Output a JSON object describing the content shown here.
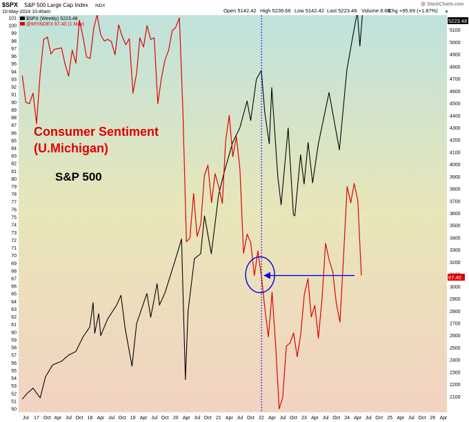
{
  "header": {
    "symbol": "$SPX",
    "name": "S&P 500 Large Cap Index",
    "exchange": "INDX",
    "date": "10-May-2024 10:46am",
    "open": "Open 5142.42",
    "high": "High 5239.66",
    "low": "Low 5142.42",
    "last": "Last 5223.48",
    "volume": "Volume 8.6B",
    "chg": "Chg +95.69 (+1.87%)",
    "chg_arrow": "▲",
    "watermark": "@ StockCharts.com",
    "legend_spx": "$SPX (Weekly) 5223.48",
    "legend_sent": "@MYINDEX 67.40 (1 May)"
  },
  "annotations": {
    "sentiment_title_line1": "Consumer Sentiment",
    "sentiment_title_line2": "(U.Michigan)",
    "spx_label": "S&P 500",
    "spx_last_badge": "5223.48",
    "sent_last_badge": "67.40"
  },
  "colors": {
    "spx": "#000000",
    "sentiment": "#dd0000",
    "annotation_blue": "#0000dd",
    "bg_top": "#bfe3dc",
    "bg_mid": "#e9e6b8",
    "bg_bottom": "#f3d3c2"
  },
  "chart_data": {
    "type": "line",
    "x_ticks": [
      "Jul",
      "17",
      "Oct",
      "Apr",
      "Jul",
      "Oct",
      "18",
      "Apr",
      "Jul",
      "Oct",
      "19",
      "Apr",
      "Jul",
      "Oct",
      "20",
      "Apr",
      "Jul",
      "Oct",
      "21",
      "Apr",
      "Jul",
      "Oct",
      "22",
      "Apr",
      "Jul",
      "Oct",
      "23",
      "Apr",
      "Jul",
      "Oct",
      "24",
      "Apr",
      "Jul",
      "Oct",
      "25",
      "Apr",
      "Jul",
      "Oct",
      "26",
      "Apr"
    ],
    "left_axis": {
      "min": 50,
      "max": 101,
      "ticks": [
        50,
        51,
        52,
        53,
        54,
        55,
        56,
        57,
        58,
        59,
        60,
        61,
        62,
        63,
        64,
        65,
        66,
        67,
        68,
        69,
        70,
        71,
        72,
        73,
        74,
        75,
        76,
        77,
        78,
        79,
        80,
        81,
        82,
        83,
        84,
        85,
        86,
        87,
        88,
        89,
        90,
        91,
        92,
        93,
        94,
        95,
        96,
        97,
        98,
        99,
        100,
        101
      ]
    },
    "right_axis": {
      "min": 2000,
      "max": 5200,
      "ticks": [
        2100,
        2200,
        2300,
        2400,
        2500,
        2600,
        2700,
        2800,
        2900,
        3000,
        3100,
        3200,
        3300,
        3400,
        3500,
        3600,
        3700,
        3800,
        3900,
        4000,
        4100,
        4200,
        4300,
        4400,
        4500,
        4600,
        4700,
        4800,
        4900,
        5000,
        5100
      ]
    },
    "series": [
      {
        "name": "$SPX (Weekly)",
        "axis": "right",
        "points": [
          [
            "2016-06-01",
            2080
          ],
          [
            "2016-07-15",
            2130
          ],
          [
            "2016-09-01",
            2170
          ],
          [
            "2016-11-01",
            2090
          ],
          [
            "2016-12-15",
            2260
          ],
          [
            "2017-02-15",
            2360
          ],
          [
            "2017-05-01",
            2390
          ],
          [
            "2017-07-01",
            2440
          ],
          [
            "2017-09-01",
            2470
          ],
          [
            "2017-11-01",
            2590
          ],
          [
            "2017-12-29",
            2670
          ],
          [
            "2018-01-26",
            2870
          ],
          [
            "2018-02-09",
            2620
          ],
          [
            "2018-03-15",
            2780
          ],
          [
            "2018-04-01",
            2600
          ],
          [
            "2018-06-01",
            2740
          ],
          [
            "2018-08-15",
            2850
          ],
          [
            "2018-09-21",
            2930
          ],
          [
            "2018-10-26",
            2660
          ],
          [
            "2018-12-24",
            2350
          ],
          [
            "2019-02-01",
            2700
          ],
          [
            "2019-04-30",
            2945
          ],
          [
            "2019-06-01",
            2750
          ],
          [
            "2019-07-26",
            3025
          ],
          [
            "2019-08-15",
            2850
          ],
          [
            "2019-10-01",
            2950
          ],
          [
            "2019-12-31",
            3230
          ],
          [
            "2020-02-19",
            3390
          ],
          [
            "2020-03-23",
            2240
          ],
          [
            "2020-04-15",
            2800
          ],
          [
            "2020-06-08",
            3230
          ],
          [
            "2020-07-31",
            3270
          ],
          [
            "2020-09-02",
            3580
          ],
          [
            "2020-10-30",
            3270
          ],
          [
            "2020-12-31",
            3750
          ],
          [
            "2021-02-15",
            3930
          ],
          [
            "2021-04-30",
            4180
          ],
          [
            "2021-06-30",
            4300
          ],
          [
            "2021-08-31",
            4520
          ],
          [
            "2021-10-01",
            4360
          ],
          [
            "2021-11-19",
            4700
          ],
          [
            "2021-12-31",
            4770
          ],
          [
            "2022-01-28",
            4430
          ],
          [
            "2022-03-08",
            4170
          ],
          [
            "2022-03-29",
            4630
          ],
          [
            "2022-05-20",
            3900
          ],
          [
            "2022-06-17",
            3670
          ],
          [
            "2022-08-16",
            4300
          ],
          [
            "2022-09-30",
            3590
          ],
          [
            "2022-10-12",
            3580
          ],
          [
            "2022-11-30",
            4080
          ],
          [
            "2022-12-30",
            3840
          ],
          [
            "2023-02-02",
            4180
          ],
          [
            "2023-03-13",
            3850
          ],
          [
            "2023-05-01",
            4170
          ],
          [
            "2023-07-31",
            4590
          ],
          [
            "2023-10-27",
            4120
          ],
          [
            "2023-12-29",
            4770
          ],
          [
            "2024-02-15",
            5030
          ],
          [
            "2024-03-28",
            5250
          ],
          [
            "2024-04-19",
            4970
          ],
          [
            "2024-05-10",
            5223
          ]
        ]
      },
      {
        "name": "@MYINDEX",
        "axis": "left",
        "points": [
          [
            "2016-06-01",
            93.5
          ],
          [
            "2016-07-01",
            90
          ],
          [
            "2016-08-01",
            89.8
          ],
          [
            "2016-09-01",
            91.2
          ],
          [
            "2016-10-01",
            87.2
          ],
          [
            "2016-11-01",
            93.8
          ],
          [
            "2016-12-01",
            98.2
          ],
          [
            "2017-01-01",
            98.5
          ],
          [
            "2017-02-01",
            96.3
          ],
          [
            "2017-03-01",
            96.9
          ],
          [
            "2017-04-01",
            97
          ],
          [
            "2017-05-01",
            97.1
          ],
          [
            "2017-06-01",
            95
          ],
          [
            "2017-07-01",
            93.4
          ],
          [
            "2017-08-01",
            96.8
          ],
          [
            "2017-09-01",
            95.1
          ],
          [
            "2017-10-01",
            100.7
          ],
          [
            "2017-11-01",
            98.5
          ],
          [
            "2017-12-01",
            95.9
          ],
          [
            "2018-01-01",
            95.7
          ],
          [
            "2018-02-01",
            99.7
          ],
          [
            "2018-03-01",
            101.4
          ],
          [
            "2018-04-01",
            98.8
          ],
          [
            "2018-05-01",
            98
          ],
          [
            "2018-06-01",
            98.2
          ],
          [
            "2018-07-01",
            97.9
          ],
          [
            "2018-08-01",
            96.2
          ],
          [
            "2018-09-01",
            100.1
          ],
          [
            "2018-10-01",
            98.6
          ],
          [
            "2018-11-01",
            97.5
          ],
          [
            "2018-12-01",
            98.3
          ],
          [
            "2019-01-01",
            91.2
          ],
          [
            "2019-02-01",
            93.8
          ],
          [
            "2019-03-01",
            98.4
          ],
          [
            "2019-04-01",
            97.2
          ],
          [
            "2019-05-01",
            100
          ],
          [
            "2019-06-01",
            98.2
          ],
          [
            "2019-07-01",
            98.4
          ],
          [
            "2019-08-01",
            89.8
          ],
          [
            "2019-09-01",
            93.2
          ],
          [
            "2019-10-01",
            95.5
          ],
          [
            "2019-11-01",
            96.8
          ],
          [
            "2019-12-01",
            99.3
          ],
          [
            "2020-01-01",
            99.8
          ],
          [
            "2020-02-01",
            101
          ],
          [
            "2020-03-01",
            89.1
          ],
          [
            "2020-04-01",
            71.8
          ],
          [
            "2020-05-01",
            72.3
          ],
          [
            "2020-06-01",
            78.1
          ],
          [
            "2020-07-01",
            72.5
          ],
          [
            "2020-08-01",
            74.1
          ],
          [
            "2020-09-01",
            80.4
          ],
          [
            "2020-10-01",
            81.8
          ],
          [
            "2020-11-01",
            76.9
          ],
          [
            "2020-12-01",
            80.7
          ],
          [
            "2021-01-01",
            79
          ],
          [
            "2021-02-01",
            76.8
          ],
          [
            "2021-03-01",
            84.9
          ],
          [
            "2021-04-01",
            88.3
          ],
          [
            "2021-05-01",
            82.9
          ],
          [
            "2021-06-01",
            85.5
          ],
          [
            "2021-07-01",
            81.2
          ],
          [
            "2021-08-01",
            70.3
          ],
          [
            "2021-09-01",
            72.8
          ],
          [
            "2021-10-01",
            71.7
          ],
          [
            "2021-11-01",
            67.4
          ],
          [
            "2021-12-01",
            70.6
          ],
          [
            "2022-01-01",
            67.2
          ],
          [
            "2022-02-01",
            62.8
          ],
          [
            "2022-03-01",
            59.4
          ],
          [
            "2022-04-01",
            65.2
          ],
          [
            "2022-05-01",
            58.4
          ],
          [
            "2022-06-01",
            50
          ],
          [
            "2022-07-01",
            51.5
          ],
          [
            "2022-08-01",
            58.2
          ],
          [
            "2022-09-01",
            58.6
          ],
          [
            "2022-10-01",
            59.9
          ],
          [
            "2022-11-01",
            56.8
          ],
          [
            "2022-12-01",
            59.7
          ],
          [
            "2023-01-01",
            64.9
          ],
          [
            "2023-02-01",
            67
          ],
          [
            "2023-03-01",
            62
          ],
          [
            "2023-04-01",
            63.5
          ],
          [
            "2023-05-01",
            59.2
          ],
          [
            "2023-06-01",
            64.4
          ],
          [
            "2023-07-01",
            71.6
          ],
          [
            "2023-08-01",
            69.4
          ],
          [
            "2023-09-01",
            67.9
          ],
          [
            "2023-10-01",
            63.8
          ],
          [
            "2023-11-01",
            61.3
          ],
          [
            "2023-12-01",
            69.7
          ],
          [
            "2024-01-01",
            79
          ],
          [
            "2024-02-01",
            76.9
          ],
          [
            "2024-03-01",
            79.4
          ],
          [
            "2024-04-01",
            77.2
          ],
          [
            "2024-05-01",
            67.4
          ]
        ]
      }
    ],
    "annotations": [
      {
        "type": "vertical-line",
        "x": "2022-01-01",
        "style": "dotted",
        "color": "blue"
      },
      {
        "type": "ellipse",
        "x": "2021-12-20",
        "y": 67.5,
        "color": "blue"
      },
      {
        "type": "arrow",
        "from": [
          "2024-05-01",
          67.4
        ],
        "to": [
          "2022-01-01",
          67.4
        ],
        "color": "blue"
      }
    ]
  }
}
